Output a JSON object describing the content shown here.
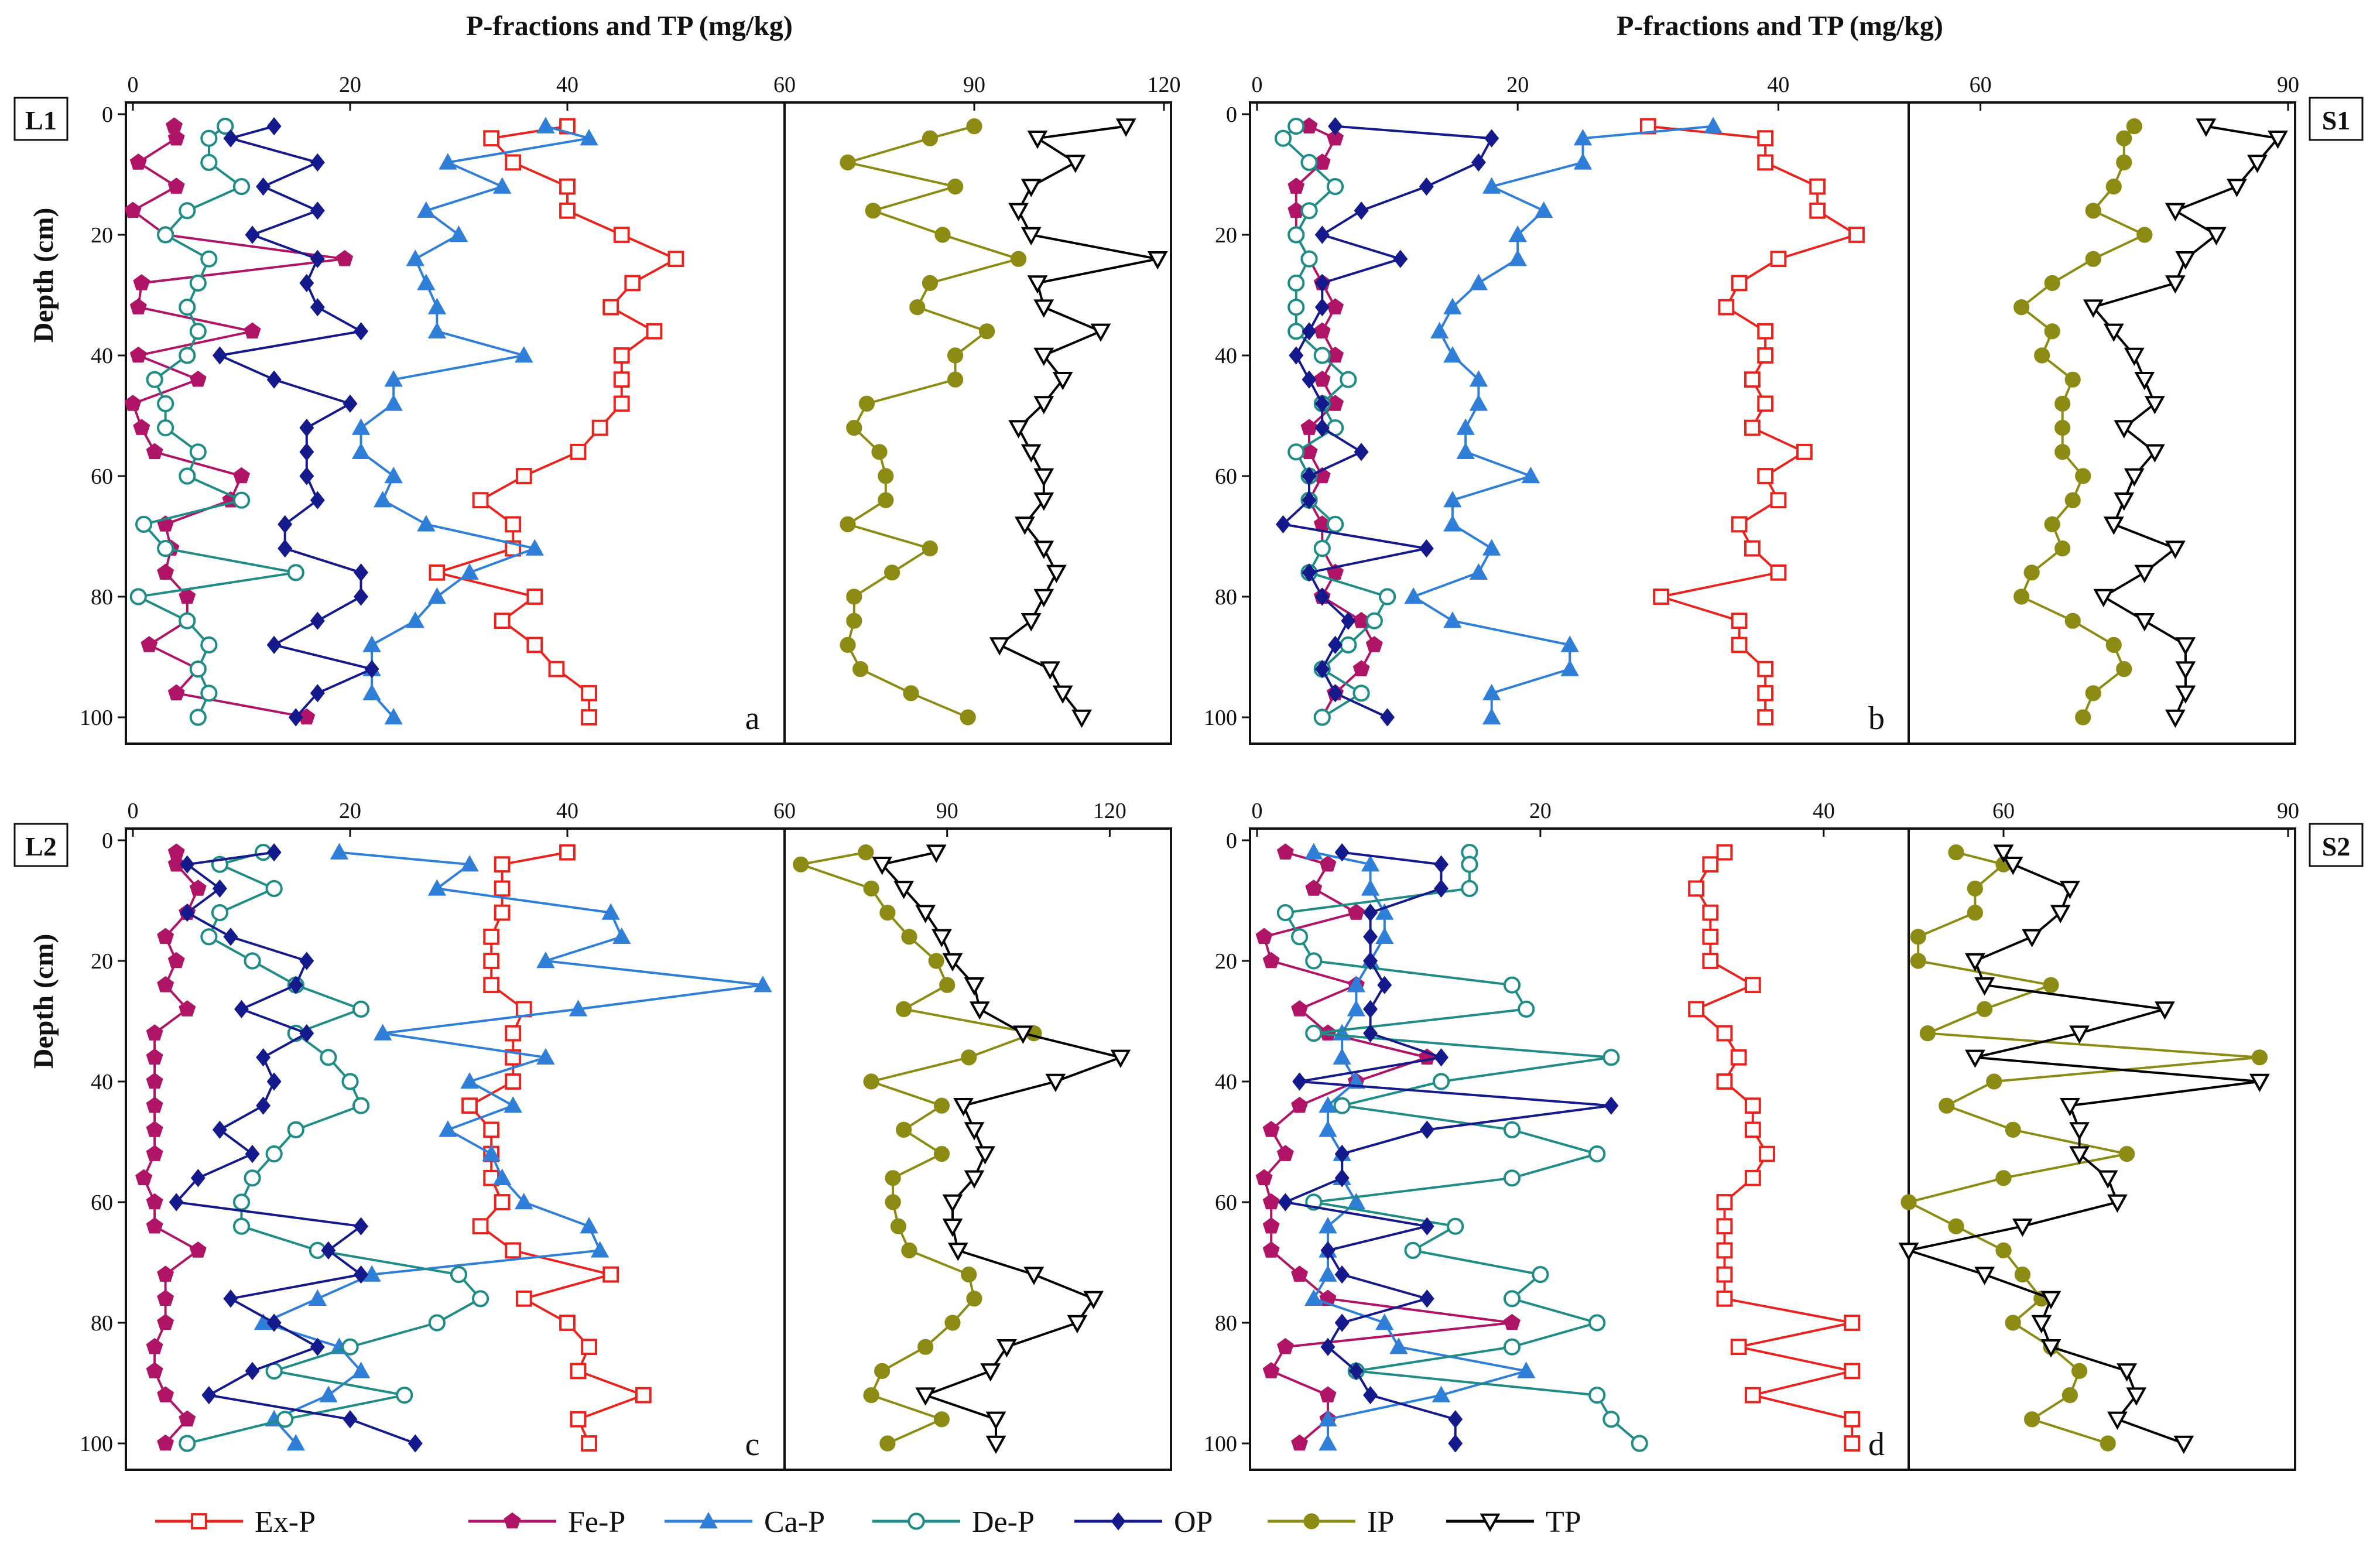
{
  "colors": {
    "Ex-P": "#e8241f",
    "Fe-P": "#b01466",
    "Ca-P": "#2f7fd8",
    "De-P": "#1f8c86",
    "OP": "#141a8c",
    "IP": "#8c8c14",
    "TP": "#000000"
  },
  "chart_data": {
    "type": "line",
    "title": "P-fractions and TP (mg/kg)",
    "ylabel": "Depth (cm)",
    "legend": {
      "placement": "bottom",
      "entries": [
        {
          "name": "Ex-P",
          "marker": "open-square"
        },
        {
          "name": "Fe-P",
          "marker": "filled-pentagon"
        },
        {
          "name": "Ca-P",
          "marker": "filled-triangle"
        },
        {
          "name": "De-P",
          "marker": "open-circle"
        },
        {
          "name": "OP",
          "marker": "filled-diamond"
        },
        {
          "name": "IP",
          "marker": "filled-circle"
        },
        {
          "name": "TP",
          "marker": "open-triangle-down"
        }
      ]
    },
    "panels": [
      {
        "site": "L1",
        "letter": "a",
        "left_xlim": [
          0,
          60
        ],
        "left_ticks": [
          "0",
          "20",
          "40",
          "60"
        ],
        "right_xlim": [
          60,
          120
        ],
        "right_ticks": [
          "90",
          "120"
        ],
        "ylim": [
          0,
          100
        ],
        "yticks": [
          "0",
          "20",
          "40",
          "60",
          "80",
          "100"
        ],
        "depths": [
          2,
          4,
          8,
          12,
          16,
          20,
          24,
          28,
          32,
          36,
          40,
          44,
          48,
          52,
          56,
          60,
          64,
          68,
          72,
          76,
          80,
          84,
          88,
          92,
          96,
          100
        ],
        "series": {
          "Ex-P": [
            40,
            33,
            35,
            40,
            40,
            45,
            50,
            46,
            44,
            48,
            45,
            45,
            45,
            43,
            41,
            36,
            32,
            35,
            35,
            28,
            37,
            34,
            37,
            39,
            42,
            42
          ],
          "Fe-P": [
            3.8,
            4,
            0.5,
            4,
            0,
            3,
            19.5,
            0.8,
            0.5,
            11,
            0.5,
            6,
            0,
            0.8,
            2,
            10,
            9,
            3,
            3.5,
            3,
            5,
            5,
            1.5,
            6,
            4,
            16
          ],
          "Ca-P": [
            38,
            42,
            29,
            34,
            27,
            30,
            26,
            27,
            28,
            28,
            36,
            24,
            24,
            21,
            21,
            24,
            23,
            27,
            37,
            31,
            28,
            26,
            22,
            22,
            22,
            24
          ],
          "De-P": [
            8.5,
            7,
            7,
            10,
            5,
            3,
            7,
            6,
            5,
            6,
            5,
            2,
            3,
            3,
            6,
            5,
            10,
            1,
            3,
            15,
            0.5,
            5,
            7,
            6,
            7,
            6
          ],
          "OP": [
            13,
            9,
            17,
            12,
            17,
            11,
            17,
            16,
            17,
            21,
            8,
            13,
            20,
            16,
            16,
            16,
            17,
            14,
            14,
            21,
            21,
            17,
            13,
            22,
            17,
            15
          ],
          "IP": [
            90,
            83,
            70,
            87,
            74,
            85,
            97,
            83,
            81,
            92,
            87,
            87,
            73,
            71,
            75,
            76,
            76,
            70,
            83,
            77,
            71,
            71,
            70,
            72,
            80,
            89
          ],
          "TP": [
            114,
            100,
            106,
            99,
            97,
            99,
            119,
            100,
            101,
            110,
            101,
            104,
            101,
            97,
            99,
            101,
            101,
            98,
            101,
            103,
            101,
            99,
            94,
            102,
            104,
            107
          ]
        }
      },
      {
        "site": "S1",
        "letter": "b",
        "left_xlim": [
          0,
          50
        ],
        "left_ticks": [
          "0",
          "20",
          "40"
        ],
        "right_xlim": [
          53,
          90
        ],
        "right_ticks": [
          "60",
          "90"
        ],
        "ylim": [
          0,
          100
        ],
        "yticks": [
          "0",
          "20",
          "40",
          "60",
          "80",
          "100"
        ],
        "depths": [
          2,
          4,
          8,
          12,
          16,
          20,
          24,
          28,
          32,
          36,
          40,
          44,
          48,
          52,
          56,
          60,
          64,
          68,
          72,
          76,
          80,
          84,
          88,
          92,
          96,
          100
        ],
        "series": {
          "Ex-P": [
            30,
            39,
            39,
            43,
            43,
            46,
            40,
            37,
            36,
            39,
            39,
            38,
            39,
            38,
            42,
            39,
            40,
            37,
            38,
            40,
            31,
            37,
            37,
            39,
            39,
            39
          ],
          "Fe-P": [
            4,
            6,
            5,
            3,
            3,
            3,
            4,
            5,
            6,
            5,
            6,
            5,
            6,
            4,
            4,
            5,
            4,
            5,
            5,
            6,
            5,
            8,
            9,
            8,
            6,
            5
          ],
          "Ca-P": [
            35,
            25,
            25,
            18,
            22,
            20,
            20,
            17,
            15,
            14,
            15,
            17,
            17,
            16,
            16,
            21,
            15,
            15,
            18,
            17,
            12,
            15,
            24,
            24,
            18,
            18
          ],
          "De-P": [
            3,
            2,
            4,
            6,
            4,
            3,
            4,
            3,
            3,
            3,
            5,
            7,
            5,
            6,
            3,
            4,
            4,
            6,
            5,
            4,
            10,
            9,
            7,
            5,
            8,
            5
          ],
          "OP": [
            6,
            18,
            17,
            13,
            8,
            5,
            11,
            5,
            5,
            4,
            3,
            4,
            5,
            5,
            8,
            4,
            4,
            2,
            13,
            4,
            5,
            7,
            6,
            5,
            6,
            10
          ],
          "IP": [
            75,
            74,
            74,
            73,
            71,
            76,
            71,
            67,
            64,
            67,
            66,
            69,
            68,
            68,
            68,
            70,
            69,
            67,
            68,
            65,
            64,
            69,
            73,
            74,
            71,
            70
          ],
          "TP": [
            82,
            89,
            87,
            85,
            79,
            83,
            80,
            79,
            71,
            73,
            75,
            76,
            77,
            74,
            77,
            75,
            74,
            73,
            79,
            76,
            72,
            76,
            80,
            80,
            80,
            79
          ]
        }
      },
      {
        "site": "L2",
        "letter": "c",
        "left_xlim": [
          0,
          60
        ],
        "left_ticks": [
          "0",
          "20",
          "40",
          "60"
        ],
        "right_xlim": [
          60,
          130
        ],
        "right_ticks": [
          "90",
          "120"
        ],
        "ylim": [
          0,
          100
        ],
        "yticks": [
          "0",
          "20",
          "40",
          "60",
          "80",
          "100"
        ],
        "depths": [
          2,
          4,
          8,
          12,
          16,
          20,
          24,
          28,
          32,
          36,
          40,
          44,
          48,
          52,
          56,
          60,
          64,
          68,
          72,
          76,
          80,
          84,
          88,
          92,
          96,
          100
        ],
        "series": {
          "Ex-P": [
            40,
            34,
            34,
            34,
            33,
            33,
            33,
            36,
            35,
            35,
            35,
            31,
            33,
            33,
            33,
            34,
            32,
            35,
            44,
            36,
            40,
            42,
            41,
            47,
            41,
            42
          ],
          "Fe-P": [
            4,
            4,
            6,
            5,
            3,
            4,
            3,
            5,
            2,
            2,
            2,
            2,
            2,
            2,
            1,
            2,
            2,
            6,
            3,
            3,
            3,
            2,
            2,
            3,
            5,
            3
          ],
          "Ca-P": [
            19,
            31,
            28,
            44,
            45,
            38,
            58,
            41,
            23,
            38,
            31,
            35,
            29,
            33,
            34,
            36,
            42,
            43,
            22,
            17,
            12,
            19,
            21,
            18,
            13,
            15
          ],
          "De-P": [
            12,
            8,
            13,
            8,
            7,
            11,
            15,
            21,
            15,
            18,
            20,
            21,
            15,
            13,
            11,
            10,
            10,
            17,
            30,
            32,
            28,
            20,
            13,
            25,
            14,
            5
          ],
          "OP": [
            13,
            5,
            8,
            5,
            9,
            16,
            15,
            10,
            16,
            12,
            13,
            12,
            8,
            11,
            6,
            4,
            21,
            18,
            21,
            9,
            13,
            17,
            11,
            7,
            20,
            26
          ],
          "IP": [
            75,
            63,
            76,
            79,
            83,
            88,
            90,
            82,
            106,
            94,
            76,
            89,
            82,
            89,
            80,
            80,
            81,
            83,
            94,
            95,
            91,
            86,
            78,
            76,
            89,
            79
          ],
          "TP": [
            88,
            78,
            82,
            86,
            89,
            91,
            95,
            96,
            104,
            122,
            110,
            93,
            95,
            97,
            95,
            91,
            91,
            92,
            106,
            117,
            114,
            101,
            98,
            86,
            99,
            99
          ]
        }
      },
      {
        "site": "S2",
        "letter": "d",
        "left_xlim": [
          0,
          46
        ],
        "left_ticks": [
          "0",
          "20",
          "40"
        ],
        "right_xlim": [
          50,
          90
        ],
        "right_ticks": [
          "60",
          "90"
        ],
        "ylim": [
          0,
          100
        ],
        "yticks": [
          "0",
          "20",
          "40",
          "60",
          "80",
          "100"
        ],
        "depths": [
          2,
          4,
          8,
          12,
          16,
          20,
          24,
          28,
          32,
          36,
          40,
          44,
          48,
          52,
          56,
          60,
          64,
          68,
          72,
          76,
          80,
          84,
          88,
          92,
          96,
          100
        ],
        "series": {
          "Ex-P": [
            33,
            32,
            31,
            32,
            32,
            32,
            35,
            31,
            33,
            34,
            33,
            35,
            35,
            36,
            35,
            33,
            33,
            33,
            33,
            33,
            42,
            34,
            42,
            35,
            42,
            42
          ],
          "Fe-P": [
            2,
            5,
            4,
            7,
            0.5,
            1,
            7,
            3,
            5,
            12,
            7,
            3,
            1,
            2,
            0.5,
            1,
            1,
            1,
            3,
            5,
            18,
            2,
            1,
            5,
            5,
            3
          ],
          "Ca-P": [
            4,
            8,
            8,
            9,
            9,
            8,
            7,
            7,
            6,
            6,
            7,
            5,
            5,
            6,
            6,
            7,
            5,
            5,
            5,
            4,
            9,
            10,
            19,
            13,
            5,
            5
          ],
          "De-P": [
            15,
            15,
            15,
            2,
            3,
            4,
            18,
            19,
            4,
            25,
            13,
            6,
            18,
            24,
            18,
            4,
            14,
            11,
            20,
            18,
            24,
            18,
            7,
            24,
            25,
            27
          ],
          "OP": [
            6,
            13,
            13,
            8,
            8,
            8,
            9,
            8,
            8,
            13,
            3,
            25,
            12,
            6,
            6,
            2,
            12,
            5,
            6,
            12,
            6,
            5,
            7,
            8,
            14,
            14
          ],
          "IP": [
            55,
            60,
            57,
            57,
            51,
            51,
            65,
            58,
            52,
            87,
            59,
            54,
            61,
            73,
            60,
            50,
            55,
            60,
            62,
            64,
            61,
            65,
            68,
            67,
            63,
            71
          ],
          "TP": [
            60,
            61,
            67,
            66,
            63,
            57,
            58,
            77,
            68,
            57,
            87,
            67,
            68,
            68,
            71,
            72,
            62,
            50,
            58,
            65,
            64,
            65,
            73,
            74,
            72,
            79
          ]
        }
      }
    ]
  }
}
